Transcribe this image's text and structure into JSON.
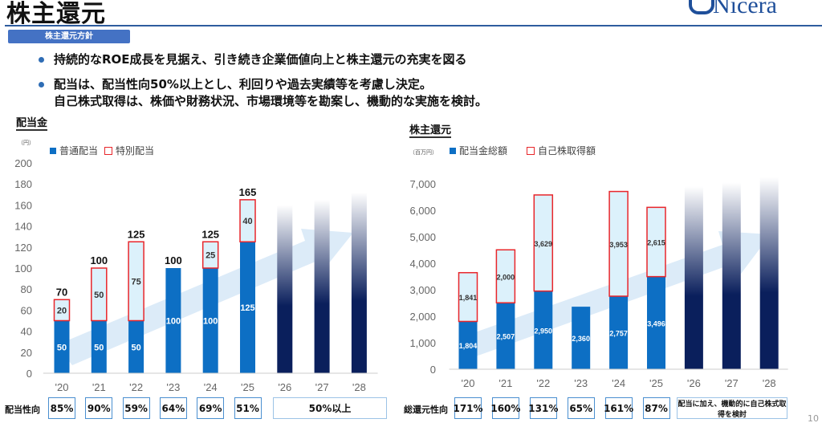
{
  "header": {
    "title": "株主還元",
    "logo": "Nicera",
    "badge": "株主還元方針",
    "page": "10"
  },
  "bullets": [
    "持続的なROE成長を見据え、引き続き企業価値向上と株主還元の充実を図る",
    "配当は、配当性向50%以上とし、利回りや過去実績等を考慮し決定。",
    "自己株式取得は、株価や財務状況、市場環境等を勘案し、機動的な実施を検討。"
  ],
  "colors": {
    "blue": "#0d6fc4",
    "red": "#e8262b",
    "light": "#dcf1fb",
    "navy": "#0a1f5c"
  },
  "left": {
    "title": "配当金",
    "unit": "（円）",
    "legend": [
      "普通配当",
      "特別配当"
    ],
    "row_label": "配当性向",
    "ratios": [
      "85%",
      "90%",
      "59%",
      "64%",
      "69%",
      "51%"
    ],
    "future": "50%以上"
  },
  "right": {
    "title": "株主還元",
    "unit": "（百万円）",
    "legend": [
      "配当金総額",
      "自己株取得額"
    ],
    "row_label": "総還元性向",
    "ratios": [
      "171%",
      "160%",
      "131%",
      "65%",
      "161%",
      "87%"
    ],
    "future": "配当に加え、機動的に自己株式取得を検討"
  },
  "chart_data": [
    {
      "type": "bar",
      "stacked": true,
      "title": "配当金",
      "ylabel": "円",
      "ylim": [
        0,
        200
      ],
      "yticks": [
        0,
        20,
        40,
        60,
        80,
        100,
        120,
        140,
        160,
        180,
        200
      ],
      "categories": [
        "'20",
        "'21",
        "'22",
        "'23",
        "'24",
        "'25",
        "'26",
        "'27",
        "'28"
      ],
      "series": [
        {
          "name": "普通配当",
          "values": [
            50,
            50,
            50,
            100,
            100,
            125,
            null,
            null,
            null
          ]
        },
        {
          "name": "特別配当",
          "values": [
            20,
            50,
            75,
            0,
            25,
            40,
            null,
            null,
            null
          ]
        }
      ],
      "totals": [
        70,
        100,
        125,
        100,
        125,
        165,
        null,
        null,
        null
      ],
      "forecast_heights": [
        160,
        165,
        172
      ]
    },
    {
      "type": "bar",
      "stacked": true,
      "title": "株主還元",
      "ylabel": "百万円",
      "ylim": [
        0,
        7000
      ],
      "yticks": [
        "0",
        "1,000",
        "2,000",
        "3,000",
        "4,000",
        "5,000",
        "6,000",
        "7,000"
      ],
      "categories": [
        "'20",
        "'21",
        "'22",
        "'23",
        "'24",
        "'25",
        "'26",
        "'27",
        "'28"
      ],
      "series": [
        {
          "name": "配当金総額",
          "values": [
            1804,
            2507,
            2950,
            2360,
            2757,
            3496,
            null,
            null,
            null
          ]
        },
        {
          "name": "自己株取得額",
          "values": [
            1841,
            2000,
            3629,
            0,
            3953,
            2615,
            null,
            null,
            null
          ]
        }
      ],
      "forecast_heights": [
        6900,
        7050,
        7250
      ]
    }
  ]
}
